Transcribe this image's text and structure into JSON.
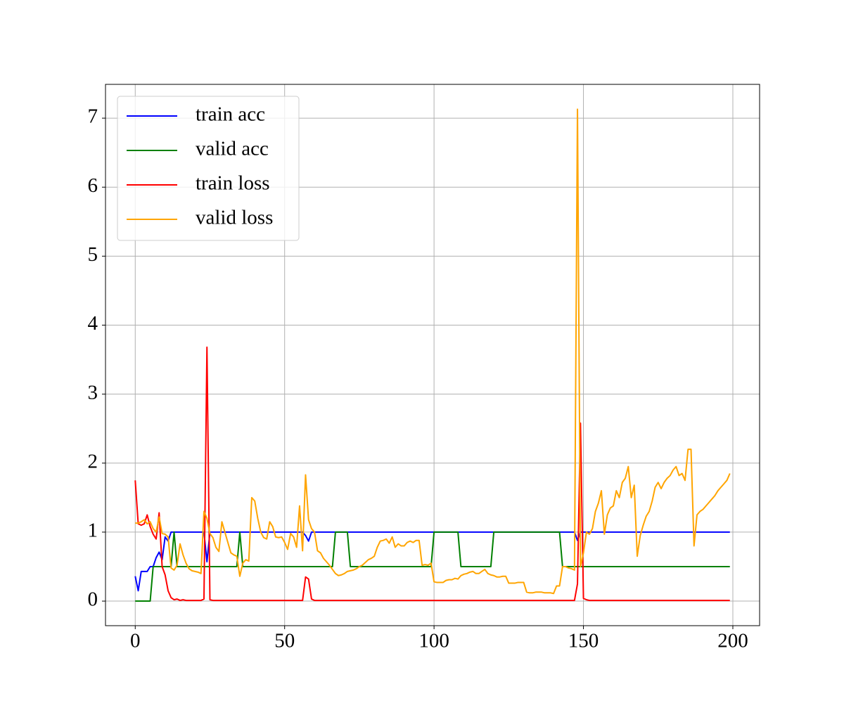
{
  "chart_data": {
    "type": "line",
    "x": [
      0,
      1,
      2,
      3,
      4,
      5,
      6,
      7,
      8,
      9,
      10,
      11,
      12,
      13,
      14,
      15,
      16,
      17,
      18,
      19,
      20,
      21,
      22,
      23,
      24,
      25,
      26,
      27,
      28,
      29,
      30,
      31,
      32,
      33,
      34,
      35,
      36,
      37,
      38,
      39,
      40,
      41,
      42,
      43,
      44,
      45,
      46,
      47,
      48,
      49,
      50,
      51,
      52,
      53,
      54,
      55,
      56,
      57,
      58,
      59,
      60,
      61,
      62,
      63,
      64,
      65,
      66,
      67,
      68,
      69,
      70,
      71,
      72,
      73,
      74,
      75,
      76,
      77,
      78,
      79,
      80,
      81,
      82,
      83,
      84,
      85,
      86,
      87,
      88,
      89,
      90,
      91,
      92,
      93,
      94,
      95,
      96,
      97,
      98,
      99,
      100,
      101,
      102,
      103,
      104,
      105,
      106,
      107,
      108,
      109,
      110,
      111,
      112,
      113,
      114,
      115,
      116,
      117,
      118,
      119,
      120,
      121,
      122,
      123,
      124,
      125,
      126,
      127,
      128,
      129,
      130,
      131,
      132,
      133,
      134,
      135,
      136,
      137,
      138,
      139,
      140,
      141,
      142,
      143,
      144,
      145,
      146,
      147,
      148,
      149,
      150,
      151,
      152,
      153,
      154,
      155,
      156,
      157,
      158,
      159,
      160,
      161,
      162,
      163,
      164,
      165,
      166,
      167,
      168,
      169,
      170,
      171,
      172,
      173,
      174,
      175,
      176,
      177,
      178,
      179,
      180,
      181,
      182,
      183,
      184,
      185,
      186,
      187,
      188,
      189,
      190,
      191,
      192,
      193,
      194,
      195,
      196,
      197,
      198,
      199
    ],
    "series": [
      {
        "name": "train acc",
        "color": "#0000ff",
        "values": [
          0.36,
          0.15,
          0.43,
          0.43,
          0.43,
          0.5,
          0.5,
          0.63,
          0.71,
          0.6,
          0.93,
          0.87,
          1,
          1,
          1,
          1,
          1,
          1,
          1,
          1,
          1,
          1,
          1,
          1,
          0.57,
          1,
          1,
          1,
          1,
          1,
          1,
          1,
          1,
          1,
          1,
          1,
          1,
          1,
          1,
          1,
          1,
          1,
          1,
          1,
          1,
          1,
          1,
          1,
          1,
          1,
          1,
          1,
          1,
          1,
          1,
          1,
          1,
          0.95,
          0.87,
          1,
          1,
          1,
          1,
          1,
          1,
          1,
          1,
          1,
          1,
          1,
          1,
          1,
          1,
          1,
          1,
          1,
          1,
          1,
          1,
          1,
          1,
          1,
          1,
          1,
          1,
          1,
          1,
          1,
          1,
          1,
          1,
          1,
          1,
          1,
          1,
          1,
          1,
          1,
          1,
          1,
          1,
          1,
          1,
          1,
          1,
          1,
          1,
          1,
          1,
          1,
          1,
          1,
          1,
          1,
          1,
          1,
          1,
          1,
          1,
          1,
          1,
          1,
          1,
          1,
          1,
          1,
          1,
          1,
          1,
          1,
          1,
          1,
          1,
          1,
          1,
          1,
          1,
          1,
          1,
          1,
          1,
          1,
          1,
          1,
          1,
          1,
          1,
          1,
          0.88,
          1,
          1,
          1,
          1,
          1,
          1,
          1,
          1,
          1,
          1,
          1,
          1,
          1,
          1,
          1,
          1,
          1,
          1,
          1,
          1,
          1,
          1,
          1,
          1,
          1,
          1,
          1,
          1,
          1,
          1,
          1,
          1,
          1,
          1,
          1,
          1,
          1,
          1,
          1,
          1,
          1,
          1,
          1,
          1,
          1,
          1,
          1,
          1,
          1,
          1,
          1
        ]
      },
      {
        "name": "valid acc",
        "color": "#008000",
        "values": [
          0,
          0,
          0,
          0,
          0,
          0,
          0.5,
          0.5,
          0.5,
          0.5,
          0.5,
          0.5,
          0.5,
          1,
          0.5,
          0.5,
          0.5,
          0.5,
          0.5,
          0.5,
          0.5,
          0.5,
          0.5,
          0.5,
          0.5,
          0.5,
          0.5,
          0.5,
          0.5,
          0.5,
          0.5,
          0.5,
          0.5,
          0.5,
          0.5,
          1,
          0.5,
          0.5,
          0.5,
          0.5,
          0.5,
          0.5,
          0.5,
          0.5,
          0.5,
          0.5,
          0.5,
          0.5,
          0.5,
          0.5,
          0.5,
          0.5,
          0.5,
          0.5,
          0.5,
          0.5,
          0.5,
          0.5,
          0.5,
          0.5,
          0.5,
          0.5,
          0.5,
          0.5,
          0.5,
          0.5,
          0.5,
          1,
          1,
          1,
          1,
          1,
          0.5,
          0.5,
          0.5,
          0.5,
          0.5,
          0.5,
          0.5,
          0.5,
          0.5,
          0.5,
          0.5,
          0.5,
          0.5,
          0.5,
          0.5,
          0.5,
          0.5,
          0.5,
          0.5,
          0.5,
          0.5,
          0.5,
          0.5,
          0.5,
          0.5,
          0.5,
          0.5,
          0.5,
          1,
          1,
          1,
          1,
          1,
          1,
          1,
          1,
          1,
          0.5,
          0.5,
          0.5,
          0.5,
          0.5,
          0.5,
          0.5,
          0.5,
          0.5,
          0.5,
          0.5,
          1,
          1,
          1,
          1,
          1,
          1,
          1,
          1,
          1,
          1,
          1,
          1,
          1,
          1,
          1,
          1,
          1,
          1,
          1,
          1,
          1,
          1,
          1,
          0.5,
          0.5,
          0.5,
          0.5,
          0.5,
          0.5,
          0.5,
          0.5,
          0.5,
          0.5,
          0.5,
          0.5,
          0.5,
          0.5,
          0.5,
          0.5,
          0.5,
          0.5,
          0.5,
          0.5,
          0.5,
          0.5,
          0.5,
          0.5,
          0.5,
          0.5,
          0.5,
          0.5,
          0.5,
          0.5,
          0.5,
          0.5,
          0.5,
          0.5,
          0.5,
          0.5,
          0.5,
          0.5,
          0.5,
          0.5,
          0.5,
          0.5,
          0.5,
          0.5,
          0.5,
          0.5,
          0.5,
          0.5,
          0.5,
          0.5,
          0.5,
          0.5,
          0.5,
          0.5,
          0.5,
          0.5,
          0.5
        ]
      },
      {
        "name": "train loss",
        "color": "#ff0000",
        "values": [
          1.75,
          1.12,
          1.1,
          1.12,
          1.25,
          1.08,
          0.97,
          0.9,
          1.28,
          0.5,
          0.38,
          0.15,
          0.05,
          0.02,
          0.03,
          0.01,
          0.02,
          0.01,
          0.01,
          0.01,
          0.01,
          0.01,
          0.01,
          0.03,
          3.68,
          0.02,
          0.01,
          0.01,
          0.01,
          0.01,
          0.01,
          0.01,
          0.01,
          0.01,
          0.01,
          0.01,
          0.01,
          0.01,
          0.01,
          0.01,
          0.01,
          0.01,
          0.01,
          0.01,
          0.01,
          0.01,
          0.01,
          0.01,
          0.01,
          0.01,
          0.01,
          0.01,
          0.01,
          0.01,
          0.01,
          0.01,
          0.01,
          0.35,
          0.32,
          0.03,
          0.01,
          0.01,
          0.01,
          0.01,
          0.01,
          0.01,
          0.01,
          0.01,
          0.01,
          0.01,
          0.01,
          0.01,
          0.01,
          0.01,
          0.01,
          0.01,
          0.01,
          0.01,
          0.01,
          0.01,
          0.01,
          0.01,
          0.01,
          0.01,
          0.01,
          0.01,
          0.01,
          0.01,
          0.01,
          0.01,
          0.01,
          0.01,
          0.01,
          0.01,
          0.01,
          0.01,
          0.01,
          0.01,
          0.01,
          0.01,
          0.01,
          0.01,
          0.01,
          0.01,
          0.01,
          0.01,
          0.01,
          0.01,
          0.01,
          0.01,
          0.01,
          0.01,
          0.01,
          0.01,
          0.01,
          0.01,
          0.01,
          0.01,
          0.01,
          0.01,
          0.01,
          0.01,
          0.01,
          0.01,
          0.01,
          0.01,
          0.01,
          0.01,
          0.01,
          0.01,
          0.01,
          0.01,
          0.01,
          0.01,
          0.01,
          0.01,
          0.01,
          0.01,
          0.01,
          0.01,
          0.01,
          0.01,
          0.01,
          0.01,
          0.01,
          0.01,
          0.01,
          0.01,
          0.25,
          2.58,
          0.04,
          0.02,
          0.01,
          0.01,
          0.01,
          0.01,
          0.01,
          0.01,
          0.01,
          0.01,
          0.01,
          0.01,
          0.01,
          0.01,
          0.01,
          0.01,
          0.01,
          0.01,
          0.01,
          0.01,
          0.01,
          0.01,
          0.01,
          0.01,
          0.01,
          0.01,
          0.01,
          0.01,
          0.01,
          0.01,
          0.01,
          0.01,
          0.01,
          0.01,
          0.01,
          0.01,
          0.01,
          0.01,
          0.01,
          0.01,
          0.01,
          0.01,
          0.01,
          0.01,
          0.01,
          0.01,
          0.01,
          0.01,
          0.01,
          0.01
        ]
      },
      {
        "name": "valid loss",
        "color": "#ffa500",
        "values": [
          1.13,
          1.13,
          1.15,
          1.18,
          1.12,
          1.15,
          1.05,
          1.0,
          1.22,
          0.98,
          0.97,
          0.93,
          0.48,
          0.45,
          0.52,
          0.83,
          0.67,
          0.55,
          0.47,
          0.44,
          0.43,
          0.42,
          0.4,
          1.3,
          1.2,
          0.98,
          0.92,
          0.78,
          0.72,
          1.15,
          1.0,
          0.85,
          0.7,
          0.67,
          0.65,
          0.36,
          0.55,
          0.6,
          0.58,
          1.5,
          1.45,
          1.2,
          1.0,
          0.92,
          0.9,
          1.15,
          1.08,
          0.93,
          0.92,
          0.93,
          0.85,
          0.75,
          0.98,
          0.93,
          0.78,
          1.38,
          0.73,
          1.83,
          1.18,
          1.05,
          1.0,
          0.73,
          0.7,
          0.62,
          0.57,
          0.52,
          0.46,
          0.4,
          0.37,
          0.38,
          0.4,
          0.43,
          0.44,
          0.45,
          0.47,
          0.5,
          0.52,
          0.56,
          0.6,
          0.62,
          0.65,
          0.78,
          0.87,
          0.88,
          0.9,
          0.84,
          0.93,
          0.78,
          0.83,
          0.8,
          0.8,
          0.85,
          0.87,
          0.85,
          0.88,
          0.88,
          0.52,
          0.53,
          0.52,
          0.55,
          0.28,
          0.27,
          0.27,
          0.27,
          0.3,
          0.31,
          0.31,
          0.33,
          0.32,
          0.37,
          0.39,
          0.4,
          0.42,
          0.43,
          0.4,
          0.4,
          0.43,
          0.46,
          0.4,
          0.38,
          0.37,
          0.35,
          0.35,
          0.36,
          0.36,
          0.26,
          0.26,
          0.26,
          0.27,
          0.27,
          0.27,
          0.13,
          0.12,
          0.12,
          0.13,
          0.13,
          0.13,
          0.12,
          0.12,
          0.12,
          0.11,
          0.22,
          0.22,
          0.5,
          0.5,
          0.48,
          0.47,
          0.45,
          7.13,
          0.5,
          0.7,
          1.0,
          0.97,
          1.05,
          1.3,
          1.42,
          1.6,
          0.97,
          1.25,
          1.35,
          1.38,
          1.6,
          1.5,
          1.72,
          1.78,
          1.95,
          1.5,
          1.68,
          0.65,
          0.95,
          1.1,
          1.23,
          1.3,
          1.45,
          1.65,
          1.72,
          1.63,
          1.72,
          1.78,
          1.82,
          1.9,
          1.95,
          1.82,
          1.85,
          1.75,
          2.2,
          2.2,
          0.8,
          1.25,
          1.3,
          1.33,
          1.38,
          1.43,
          1.48,
          1.53,
          1.6,
          1.65,
          1.7,
          1.75,
          1.85
        ]
      }
    ],
    "xlim": [
      -9.95,
      208.95
    ],
    "ylim": [
      -0.356,
      7.49
    ],
    "xticks": [
      0,
      50,
      100,
      150,
      200
    ],
    "yticks": [
      0,
      1,
      2,
      3,
      4,
      5,
      6,
      7
    ],
    "grid": true,
    "legend": "upper left"
  }
}
